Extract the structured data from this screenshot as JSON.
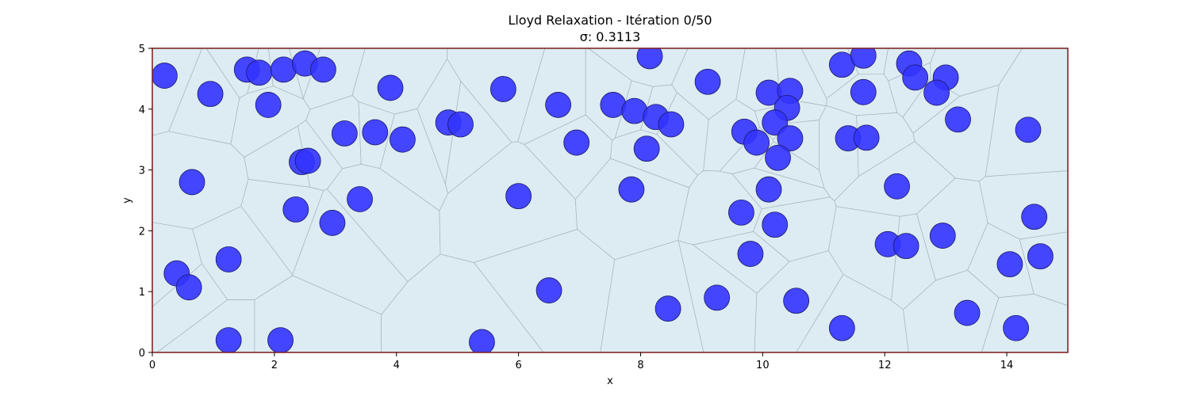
{
  "chart_data": {
    "type": "scatter",
    "title": "Lloyd Relaxation - Itération 0/50",
    "subtitle": "σ: 0.3113",
    "xlabel": "x",
    "ylabel": "y",
    "xlim": [
      0,
      15
    ],
    "ylim": [
      0,
      5
    ],
    "xticks": [
      0,
      2,
      4,
      6,
      8,
      10,
      12,
      14
    ],
    "yticks": [
      0,
      1,
      2,
      3,
      4,
      5
    ],
    "grid": true,
    "colors": {
      "points": "#3333ff",
      "cells": "#dcecf2",
      "cell_edges": "#a9b4bb",
      "frame": "#7a1a1a"
    },
    "points": [
      [
        0.2,
        4.55
      ],
      [
        0.95,
        4.25
      ],
      [
        1.55,
        4.65
      ],
      [
        1.75,
        4.6
      ],
      [
        2.15,
        4.65
      ],
      [
        2.5,
        4.75
      ],
      [
        2.8,
        4.65
      ],
      [
        1.9,
        4.07
      ],
      [
        3.9,
        4.35
      ],
      [
        5.75,
        4.33
      ],
      [
        6.65,
        4.07
      ],
      [
        8.15,
        4.87
      ],
      [
        9.1,
        4.45
      ],
      [
        11.3,
        4.73
      ],
      [
        11.65,
        4.88
      ],
      [
        12.4,
        4.75
      ],
      [
        12.5,
        4.52
      ],
      [
        13.0,
        4.52
      ],
      [
        12.85,
        4.27
      ],
      [
        11.65,
        4.28
      ],
      [
        10.1,
        4.27
      ],
      [
        10.45,
        4.3
      ],
      [
        10.4,
        4.02
      ],
      [
        7.55,
        4.07
      ],
      [
        7.9,
        3.97
      ],
      [
        8.25,
        3.87
      ],
      [
        8.5,
        3.75
      ],
      [
        4.85,
        3.78
      ],
      [
        5.05,
        3.75
      ],
      [
        3.15,
        3.6
      ],
      [
        3.65,
        3.62
      ],
      [
        4.1,
        3.5
      ],
      [
        6.95,
        3.45
      ],
      [
        8.1,
        3.35
      ],
      [
        9.7,
        3.63
      ],
      [
        9.9,
        3.45
      ],
      [
        10.2,
        3.78
      ],
      [
        10.45,
        3.52
      ],
      [
        10.25,
        3.2
      ],
      [
        11.4,
        3.52
      ],
      [
        11.7,
        3.53
      ],
      [
        13.2,
        3.83
      ],
      [
        14.35,
        3.66
      ],
      [
        2.45,
        3.13
      ],
      [
        2.55,
        3.15
      ],
      [
        0.65,
        2.8
      ],
      [
        3.4,
        2.52
      ],
      [
        6.0,
        2.57
      ],
      [
        7.85,
        2.68
      ],
      [
        10.1,
        2.68
      ],
      [
        12.2,
        2.73
      ],
      [
        2.35,
        2.35
      ],
      [
        2.95,
        2.13
      ],
      [
        9.65,
        2.3
      ],
      [
        10.2,
        2.1
      ],
      [
        14.45,
        2.23
      ],
      [
        12.05,
        1.78
      ],
      [
        12.35,
        1.75
      ],
      [
        12.95,
        1.92
      ],
      [
        1.25,
        1.53
      ],
      [
        9.8,
        1.62
      ],
      [
        14.55,
        1.58
      ],
      [
        14.05,
        1.45
      ],
      [
        0.4,
        1.3
      ],
      [
        0.6,
        1.07
      ],
      [
        6.5,
        1.02
      ],
      [
        9.25,
        0.9
      ],
      [
        10.55,
        0.85
      ],
      [
        8.45,
        0.72
      ],
      [
        13.35,
        0.65
      ],
      [
        11.3,
        0.4
      ],
      [
        14.15,
        0.4
      ],
      [
        1.25,
        0.2
      ],
      [
        2.1,
        0.2
      ],
      [
        5.4,
        0.17
      ]
    ]
  }
}
